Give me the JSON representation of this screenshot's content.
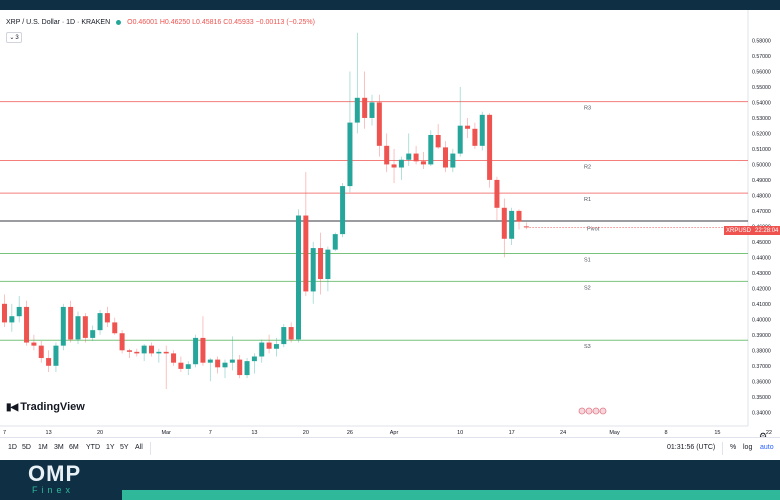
{
  "header": {
    "symbol_line": "XRP / U.S. Dollar · 1D · KRAKEN",
    "ohlc": "O0.46001 H0.46250 L0.45816 C0.45933 −0.00113 (−0.25%)",
    "indicator_count": "3"
  },
  "logo": {
    "text": "TradingView"
  },
  "price_tag": {
    "symbol": "XRPUSD",
    "countdown": "22:28:04"
  },
  "bottom_bar": {
    "timeframes": [
      "1D",
      "5D",
      "1M",
      "3M",
      "6M",
      "YTD",
      "1Y",
      "5Y",
      "All"
    ],
    "clock": "01:31:56 (UTC)",
    "percent": "%",
    "log": "log",
    "auto": "auto"
  },
  "brand": {
    "omp": "OMP",
    "finex": "Finex",
    "omp_color": "#e8f1f5",
    "finex_color": "#2fb89a"
  },
  "colors": {
    "up": "#26a69a",
    "down": "#ef5350",
    "resistance": "#ef5350",
    "support": "#4caf50",
    "pivot": "#131722",
    "brand_bar": "#2fb89a"
  },
  "chart_data": {
    "type": "candlestick",
    "y_axis_ticks": [
      0.34,
      0.35,
      0.36,
      0.37,
      0.38,
      0.39,
      0.4,
      0.41,
      0.42,
      0.43,
      0.44,
      0.45,
      0.46,
      0.47,
      0.48,
      0.49,
      0.5,
      0.51,
      0.52,
      0.53,
      0.54,
      0.55,
      0.56,
      0.57,
      0.58
    ],
    "ylim": [
      0.335,
      0.59
    ],
    "x_axis_labels": [
      {
        "label": "7",
        "index": 0
      },
      {
        "label": "13",
        "index": 6
      },
      {
        "label": "20",
        "index": 13
      },
      {
        "label": "Mar",
        "index": 22
      },
      {
        "label": "7",
        "index": 28
      },
      {
        "label": "13",
        "index": 34
      },
      {
        "label": "20",
        "index": 41
      },
      {
        "label": "26",
        "index": 47
      },
      {
        "label": "Apr",
        "index": 53
      },
      {
        "label": "10",
        "index": 62
      },
      {
        "label": "17",
        "index": 69
      },
      {
        "label": "24",
        "index": 76
      },
      {
        "label": "May",
        "index": 83
      },
      {
        "label": "8",
        "index": 90
      },
      {
        "label": "15",
        "index": 97
      },
      {
        "label": "22",
        "index": 104
      }
    ],
    "levels": [
      {
        "name": "R3",
        "value": 0.5405,
        "kind": "resistance"
      },
      {
        "name": "R2",
        "value": 0.5025,
        "kind": "resistance"
      },
      {
        "name": "R1",
        "value": 0.4815,
        "kind": "resistance"
      },
      {
        "name": "Pivot",
        "value": 0.4635,
        "kind": "pivot"
      },
      {
        "name": "S1",
        "value": 0.4425,
        "kind": "support"
      },
      {
        "name": "S2",
        "value": 0.4245,
        "kind": "support"
      },
      {
        "name": "S3",
        "value": 0.3865,
        "kind": "support"
      }
    ],
    "last_price": 0.45933,
    "candles": [
      {
        "o": 0.41,
        "h": 0.416,
        "l": 0.395,
        "c": 0.398
      },
      {
        "o": 0.398,
        "h": 0.41,
        "l": 0.392,
        "c": 0.402
      },
      {
        "o": 0.402,
        "h": 0.415,
        "l": 0.398,
        "c": 0.408
      },
      {
        "o": 0.408,
        "h": 0.412,
        "l": 0.383,
        "c": 0.385
      },
      {
        "o": 0.385,
        "h": 0.39,
        "l": 0.38,
        "c": 0.383
      },
      {
        "o": 0.383,
        "h": 0.386,
        "l": 0.372,
        "c": 0.375
      },
      {
        "o": 0.375,
        "h": 0.38,
        "l": 0.366,
        "c": 0.37
      },
      {
        "o": 0.37,
        "h": 0.385,
        "l": 0.366,
        "c": 0.383
      },
      {
        "o": 0.383,
        "h": 0.41,
        "l": 0.38,
        "c": 0.408
      },
      {
        "o": 0.408,
        "h": 0.412,
        "l": 0.385,
        "c": 0.387
      },
      {
        "o": 0.387,
        "h": 0.405,
        "l": 0.384,
        "c": 0.402
      },
      {
        "o": 0.402,
        "h": 0.404,
        "l": 0.385,
        "c": 0.388
      },
      {
        "o": 0.388,
        "h": 0.396,
        "l": 0.386,
        "c": 0.393
      },
      {
        "o": 0.393,
        "h": 0.406,
        "l": 0.39,
        "c": 0.404
      },
      {
        "o": 0.404,
        "h": 0.408,
        "l": 0.395,
        "c": 0.398
      },
      {
        "o": 0.398,
        "h": 0.401,
        "l": 0.39,
        "c": 0.391
      },
      {
        "o": 0.391,
        "h": 0.393,
        "l": 0.378,
        "c": 0.38
      },
      {
        "o": 0.38,
        "h": 0.381,
        "l": 0.375,
        "c": 0.379
      },
      {
        "o": 0.379,
        "h": 0.381,
        "l": 0.376,
        "c": 0.378
      },
      {
        "o": 0.378,
        "h": 0.384,
        "l": 0.373,
        "c": 0.383
      },
      {
        "o": 0.383,
        "h": 0.385,
        "l": 0.376,
        "c": 0.378
      },
      {
        "o": 0.378,
        "h": 0.381,
        "l": 0.372,
        "c": 0.379
      },
      {
        "o": 0.379,
        "h": 0.383,
        "l": 0.355,
        "c": 0.378
      },
      {
        "o": 0.378,
        "h": 0.38,
        "l": 0.37,
        "c": 0.372
      },
      {
        "o": 0.372,
        "h": 0.376,
        "l": 0.366,
        "c": 0.368
      },
      {
        "o": 0.368,
        "h": 0.373,
        "l": 0.364,
        "c": 0.371
      },
      {
        "o": 0.371,
        "h": 0.39,
        "l": 0.369,
        "c": 0.388
      },
      {
        "o": 0.388,
        "h": 0.402,
        "l": 0.37,
        "c": 0.372
      },
      {
        "o": 0.372,
        "h": 0.375,
        "l": 0.36,
        "c": 0.374
      },
      {
        "o": 0.374,
        "h": 0.376,
        "l": 0.365,
        "c": 0.369
      },
      {
        "o": 0.369,
        "h": 0.374,
        "l": 0.362,
        "c": 0.372
      },
      {
        "o": 0.372,
        "h": 0.389,
        "l": 0.367,
        "c": 0.374
      },
      {
        "o": 0.374,
        "h": 0.377,
        "l": 0.362,
        "c": 0.364
      },
      {
        "o": 0.364,
        "h": 0.375,
        "l": 0.362,
        "c": 0.373
      },
      {
        "o": 0.373,
        "h": 0.378,
        "l": 0.365,
        "c": 0.376
      },
      {
        "o": 0.376,
        "h": 0.387,
        "l": 0.372,
        "c": 0.385
      },
      {
        "o": 0.385,
        "h": 0.39,
        "l": 0.378,
        "c": 0.381
      },
      {
        "o": 0.381,
        "h": 0.388,
        "l": 0.376,
        "c": 0.384
      },
      {
        "o": 0.384,
        "h": 0.397,
        "l": 0.382,
        "c": 0.395
      },
      {
        "o": 0.395,
        "h": 0.398,
        "l": 0.385,
        "c": 0.387
      },
      {
        "o": 0.387,
        "h": 0.471,
        "l": 0.385,
        "c": 0.467
      },
      {
        "o": 0.467,
        "h": 0.495,
        "l": 0.415,
        "c": 0.418
      },
      {
        "o": 0.418,
        "h": 0.45,
        "l": 0.41,
        "c": 0.446
      },
      {
        "o": 0.446,
        "h": 0.456,
        "l": 0.416,
        "c": 0.426
      },
      {
        "o": 0.426,
        "h": 0.447,
        "l": 0.418,
        "c": 0.445
      },
      {
        "o": 0.445,
        "h": 0.456,
        "l": 0.444,
        "c": 0.455
      },
      {
        "o": 0.455,
        "h": 0.488,
        "l": 0.453,
        "c": 0.486
      },
      {
        "o": 0.486,
        "h": 0.56,
        "l": 0.482,
        "c": 0.527
      },
      {
        "o": 0.527,
        "h": 0.585,
        "l": 0.52,
        "c": 0.543
      },
      {
        "o": 0.543,
        "h": 0.56,
        "l": 0.523,
        "c": 0.53
      },
      {
        "o": 0.53,
        "h": 0.545,
        "l": 0.525,
        "c": 0.54
      },
      {
        "o": 0.54,
        "h": 0.545,
        "l": 0.505,
        "c": 0.512
      },
      {
        "o": 0.512,
        "h": 0.52,
        "l": 0.495,
        "c": 0.5
      },
      {
        "o": 0.5,
        "h": 0.51,
        "l": 0.488,
        "c": 0.498
      },
      {
        "o": 0.498,
        "h": 0.505,
        "l": 0.49,
        "c": 0.503
      },
      {
        "o": 0.503,
        "h": 0.52,
        "l": 0.499,
        "c": 0.507
      },
      {
        "o": 0.507,
        "h": 0.512,
        "l": 0.5,
        "c": 0.502
      },
      {
        "o": 0.502,
        "h": 0.508,
        "l": 0.497,
        "c": 0.5
      },
      {
        "o": 0.5,
        "h": 0.522,
        "l": 0.499,
        "c": 0.519
      },
      {
        "o": 0.519,
        "h": 0.526,
        "l": 0.51,
        "c": 0.511
      },
      {
        "o": 0.511,
        "h": 0.515,
        "l": 0.495,
        "c": 0.498
      },
      {
        "o": 0.498,
        "h": 0.51,
        "l": 0.495,
        "c": 0.507
      },
      {
        "o": 0.507,
        "h": 0.55,
        "l": 0.505,
        "c": 0.525
      },
      {
        "o": 0.525,
        "h": 0.53,
        "l": 0.517,
        "c": 0.523
      },
      {
        "o": 0.523,
        "h": 0.527,
        "l": 0.51,
        "c": 0.512
      },
      {
        "o": 0.512,
        "h": 0.534,
        "l": 0.509,
        "c": 0.532
      },
      {
        "o": 0.532,
        "h": 0.533,
        "l": 0.485,
        "c": 0.49
      },
      {
        "o": 0.49,
        "h": 0.492,
        "l": 0.464,
        "c": 0.472
      },
      {
        "o": 0.472,
        "h": 0.478,
        "l": 0.44,
        "c": 0.452
      },
      {
        "o": 0.452,
        "h": 0.472,
        "l": 0.448,
        "c": 0.47
      },
      {
        "o": 0.47,
        "h": 0.471,
        "l": 0.458,
        "c": 0.463
      },
      {
        "o": 0.46001,
        "h": 0.4625,
        "l": 0.45816,
        "c": 0.45933
      }
    ]
  }
}
